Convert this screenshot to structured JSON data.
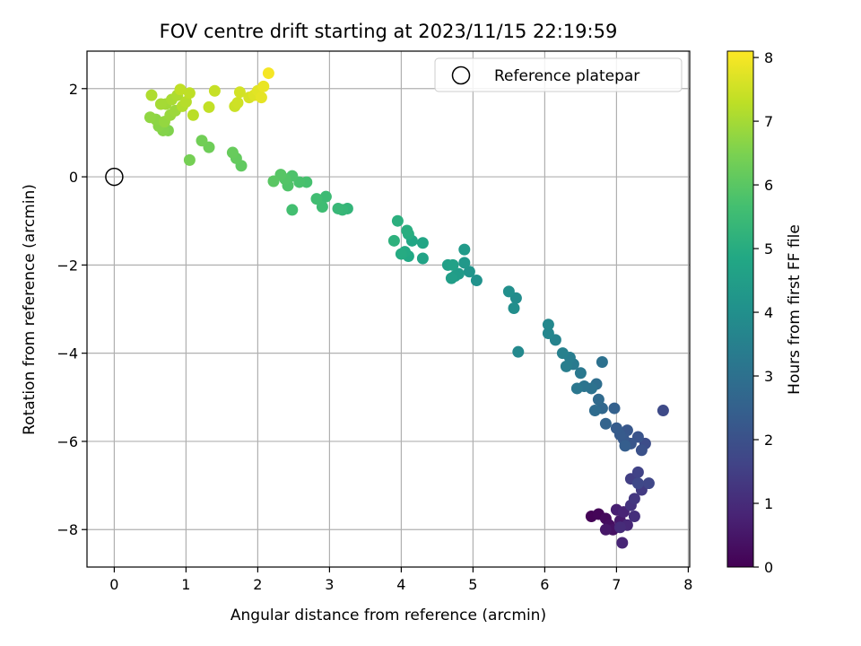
{
  "chart_data": {
    "type": "scatter",
    "title": "FOV centre drift starting at 2023/11/15 22:19:59",
    "xlabel": "Angular distance from reference (arcmin)",
    "ylabel": "Rotation from reference (arcmin)",
    "xlim": [
      -0.38,
      8.02
    ],
    "ylim": [
      -8.85,
      2.85
    ],
    "xticks": [
      0,
      1,
      2,
      3,
      4,
      5,
      6,
      7,
      8
    ],
    "yticks": [
      2,
      0,
      -2,
      -4,
      -6,
      -8
    ],
    "grid": true,
    "legend": {
      "label": "Reference platepar",
      "position": "top-right",
      "marker": "open-circle"
    },
    "reference_point": {
      "x": 0,
      "y": 0
    },
    "colorbar": {
      "label": "Hours from first FF file",
      "colormap": "viridis",
      "range": [
        0,
        8.1
      ],
      "ticks": [
        0,
        1,
        2,
        3,
        4,
        5,
        6,
        7,
        8
      ]
    },
    "points": [
      {
        "x": 6.65,
        "y": -7.7,
        "h": 0.05
      },
      {
        "x": 6.75,
        "y": -7.65,
        "h": 0.1
      },
      {
        "x": 6.85,
        "y": -7.75,
        "h": 0.2
      },
      {
        "x": 6.9,
        "y": -7.9,
        "h": 0.3
      },
      {
        "x": 6.95,
        "y": -8.0,
        "h": 0.4
      },
      {
        "x": 6.85,
        "y": -8.0,
        "h": 0.5
      },
      {
        "x": 7.05,
        "y": -7.8,
        "h": 0.6
      },
      {
        "x": 7.0,
        "y": -7.55,
        "h": 0.7
      },
      {
        "x": 7.1,
        "y": -7.6,
        "h": 0.8
      },
      {
        "x": 7.15,
        "y": -7.9,
        "h": 0.9
      },
      {
        "x": 7.05,
        "y": -7.95,
        "h": 1.0
      },
      {
        "x": 7.08,
        "y": -8.3,
        "h": 0.85
      },
      {
        "x": 7.25,
        "y": -7.7,
        "h": 1.1
      },
      {
        "x": 7.2,
        "y": -7.45,
        "h": 1.2
      },
      {
        "x": 7.25,
        "y": -7.3,
        "h": 1.3
      },
      {
        "x": 7.35,
        "y": -7.1,
        "h": 1.4
      },
      {
        "x": 7.2,
        "y": -6.85,
        "h": 1.5
      },
      {
        "x": 7.3,
        "y": -6.7,
        "h": 1.6
      },
      {
        "x": 7.45,
        "y": -6.95,
        "h": 1.7
      },
      {
        "x": 7.3,
        "y": -6.95,
        "h": 1.75
      },
      {
        "x": 7.65,
        "y": -5.3,
        "h": 1.8
      },
      {
        "x": 7.4,
        "y": -6.05,
        "h": 1.9
      },
      {
        "x": 7.35,
        "y": -6.2,
        "h": 2.0
      },
      {
        "x": 7.3,
        "y": -5.9,
        "h": 2.1
      },
      {
        "x": 7.2,
        "y": -6.05,
        "h": 2.15
      },
      {
        "x": 7.15,
        "y": -5.75,
        "h": 2.2
      },
      {
        "x": 7.1,
        "y": -5.95,
        "h": 2.25
      },
      {
        "x": 7.05,
        "y": -5.85,
        "h": 2.3
      },
      {
        "x": 7.0,
        "y": -5.7,
        "h": 2.35
      },
      {
        "x": 7.12,
        "y": -6.1,
        "h": 2.4
      },
      {
        "x": 6.97,
        "y": -5.25,
        "h": 2.5
      },
      {
        "x": 6.85,
        "y": -5.6,
        "h": 2.6
      },
      {
        "x": 6.8,
        "y": -5.25,
        "h": 2.7
      },
      {
        "x": 6.75,
        "y": -5.05,
        "h": 2.8
      },
      {
        "x": 6.7,
        "y": -5.3,
        "h": 2.85
      },
      {
        "x": 6.72,
        "y": -4.7,
        "h": 2.9
      },
      {
        "x": 6.8,
        "y": -4.2,
        "h": 3.0
      },
      {
        "x": 6.65,
        "y": -4.8,
        "h": 3.05
      },
      {
        "x": 6.55,
        "y": -4.75,
        "h": 3.1
      },
      {
        "x": 6.45,
        "y": -4.8,
        "h": 3.2
      },
      {
        "x": 6.5,
        "y": -4.45,
        "h": 3.25
      },
      {
        "x": 6.4,
        "y": -4.25,
        "h": 3.3
      },
      {
        "x": 6.35,
        "y": -4.1,
        "h": 3.4
      },
      {
        "x": 6.3,
        "y": -4.3,
        "h": 3.45
      },
      {
        "x": 6.25,
        "y": -4.0,
        "h": 3.5
      },
      {
        "x": 6.15,
        "y": -3.7,
        "h": 3.6
      },
      {
        "x": 6.05,
        "y": -3.55,
        "h": 3.7
      },
      {
        "x": 6.05,
        "y": -3.35,
        "h": 3.75
      },
      {
        "x": 5.63,
        "y": -3.97,
        "h": 3.8
      },
      {
        "x": 5.6,
        "y": -2.75,
        "h": 3.9
      },
      {
        "x": 5.57,
        "y": -2.98,
        "h": 3.95
      },
      {
        "x": 5.5,
        "y": -2.6,
        "h": 4.0
      },
      {
        "x": 5.05,
        "y": -2.35,
        "h": 4.1
      },
      {
        "x": 4.95,
        "y": -2.15,
        "h": 4.2
      },
      {
        "x": 4.88,
        "y": -1.95,
        "h": 4.3
      },
      {
        "x": 4.88,
        "y": -1.65,
        "h": 4.35
      },
      {
        "x": 4.8,
        "y": -2.2,
        "h": 4.4
      },
      {
        "x": 4.75,
        "y": -2.25,
        "h": 4.45
      },
      {
        "x": 4.7,
        "y": -2.3,
        "h": 4.5
      },
      {
        "x": 4.65,
        "y": -2.0,
        "h": 4.55
      },
      {
        "x": 4.72,
        "y": -2.0,
        "h": 4.6
      },
      {
        "x": 4.3,
        "y": -1.85,
        "h": 4.7
      },
      {
        "x": 4.3,
        "y": -1.5,
        "h": 4.75
      },
      {
        "x": 4.15,
        "y": -1.45,
        "h": 4.8
      },
      {
        "x": 4.1,
        "y": -1.8,
        "h": 4.85
      },
      {
        "x": 4.05,
        "y": -1.7,
        "h": 4.9
      },
      {
        "x": 4.0,
        "y": -1.75,
        "h": 4.95
      },
      {
        "x": 4.1,
        "y": -1.3,
        "h": 5.0
      },
      {
        "x": 4.08,
        "y": -1.22,
        "h": 5.05
      },
      {
        "x": 3.95,
        "y": -1.0,
        "h": 5.1
      },
      {
        "x": 3.9,
        "y": -1.45,
        "h": 5.15
      },
      {
        "x": 3.25,
        "y": -0.72,
        "h": 5.3
      },
      {
        "x": 3.18,
        "y": -0.75,
        "h": 5.35
      },
      {
        "x": 3.12,
        "y": -0.72,
        "h": 5.4
      },
      {
        "x": 2.95,
        "y": -0.45,
        "h": 5.5
      },
      {
        "x": 2.9,
        "y": -0.68,
        "h": 5.55
      },
      {
        "x": 2.82,
        "y": -0.5,
        "h": 5.6
      },
      {
        "x": 2.48,
        "y": -0.75,
        "h": 5.65
      },
      {
        "x": 2.68,
        "y": -0.12,
        "h": 5.7
      },
      {
        "x": 2.58,
        "y": -0.12,
        "h": 5.75
      },
      {
        "x": 2.48,
        "y": 0.02,
        "h": 5.8
      },
      {
        "x": 2.42,
        "y": -0.2,
        "h": 5.85
      },
      {
        "x": 2.38,
        "y": -0.05,
        "h": 5.9
      },
      {
        "x": 2.32,
        "y": 0.05,
        "h": 5.95
      },
      {
        "x": 2.22,
        "y": -0.1,
        "h": 6.0
      },
      {
        "x": 1.77,
        "y": 0.25,
        "h": 6.1
      },
      {
        "x": 1.7,
        "y": 0.42,
        "h": 6.15
      },
      {
        "x": 1.65,
        "y": 0.55,
        "h": 6.2
      },
      {
        "x": 1.32,
        "y": 0.67,
        "h": 6.3
      },
      {
        "x": 1.22,
        "y": 0.82,
        "h": 6.35
      },
      {
        "x": 1.05,
        "y": 0.38,
        "h": 6.4
      },
      {
        "x": 0.75,
        "y": 1.05,
        "h": 6.55
      },
      {
        "x": 0.68,
        "y": 1.05,
        "h": 6.6
      },
      {
        "x": 0.62,
        "y": 1.15,
        "h": 6.65
      },
      {
        "x": 0.58,
        "y": 1.3,
        "h": 6.7
      },
      {
        "x": 0.5,
        "y": 1.35,
        "h": 6.75
      },
      {
        "x": 0.7,
        "y": 1.25,
        "h": 6.8
      },
      {
        "x": 0.78,
        "y": 1.4,
        "h": 6.85
      },
      {
        "x": 0.85,
        "y": 1.5,
        "h": 6.9
      },
      {
        "x": 0.72,
        "y": 1.65,
        "h": 6.95
      },
      {
        "x": 0.65,
        "y": 1.65,
        "h": 7.0
      },
      {
        "x": 0.8,
        "y": 1.75,
        "h": 7.05
      },
      {
        "x": 0.88,
        "y": 1.85,
        "h": 7.1
      },
      {
        "x": 0.52,
        "y": 1.85,
        "h": 7.12
      },
      {
        "x": 0.95,
        "y": 1.6,
        "h": 7.15
      },
      {
        "x": 1.0,
        "y": 1.7,
        "h": 7.2
      },
      {
        "x": 1.1,
        "y": 1.4,
        "h": 7.25
      },
      {
        "x": 1.05,
        "y": 1.9,
        "h": 7.3
      },
      {
        "x": 0.92,
        "y": 1.98,
        "h": 7.32
      },
      {
        "x": 1.32,
        "y": 1.58,
        "h": 7.35
      },
      {
        "x": 1.4,
        "y": 1.95,
        "h": 7.4
      },
      {
        "x": 1.68,
        "y": 1.6,
        "h": 7.45
      },
      {
        "x": 1.72,
        "y": 1.68,
        "h": 7.5
      },
      {
        "x": 1.75,
        "y": 1.92,
        "h": 7.55
      },
      {
        "x": 1.88,
        "y": 1.8,
        "h": 7.6
      },
      {
        "x": 1.95,
        "y": 1.85,
        "h": 7.7
      },
      {
        "x": 2.0,
        "y": 1.95,
        "h": 7.75
      },
      {
        "x": 2.05,
        "y": 1.8,
        "h": 7.8
      },
      {
        "x": 2.08,
        "y": 2.05,
        "h": 7.85
      },
      {
        "x": 2.15,
        "y": 2.35,
        "h": 8.0
      }
    ]
  }
}
